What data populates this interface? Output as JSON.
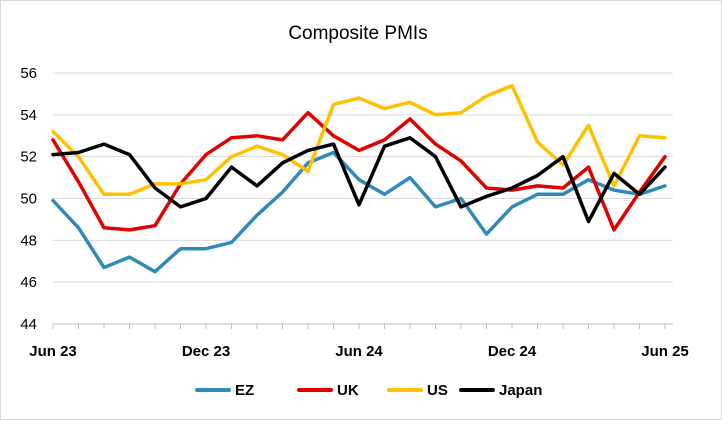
{
  "chart_data": {
    "type": "line",
    "title": "Composite PMIs",
    "xlabel": "",
    "ylabel": "",
    "ylim": [
      44,
      56
    ],
    "yticks": [
      "44",
      "46",
      "48",
      "50",
      "52",
      "54",
      "56"
    ],
    "x": [
      "Jun 23",
      "Jul 23",
      "Aug 23",
      "Sep 23",
      "Oct 23",
      "Nov 23",
      "Dec 23",
      "Jan 24",
      "Feb 24",
      "Mar 24",
      "Apr 24",
      "May 24",
      "Jun 24",
      "Jul 24",
      "Aug 24",
      "Sep 24",
      "Oct 24",
      "Nov 24",
      "Dec 24",
      "Jan 25",
      "Feb 25",
      "Mar 25",
      "Apr 25",
      "May 25",
      "Jun 25"
    ],
    "xticks": [
      {
        "label": "Jun 23",
        "index": 0
      },
      {
        "label": "Dec 23",
        "index": 6
      },
      {
        "label": "Jun 24",
        "index": 12
      },
      {
        "label": "Dec 24",
        "index": 18
      },
      {
        "label": "Jun 25",
        "index": 24
      }
    ],
    "grid": "horizontal",
    "legend_position": "bottom",
    "series": [
      {
        "name": "EZ",
        "color": "#2e8bb8",
        "values": [
          49.9,
          48.6,
          46.7,
          47.2,
          46.5,
          47.6,
          47.6,
          47.9,
          49.2,
          50.3,
          51.7,
          52.2,
          50.9,
          50.2,
          51.0,
          49.6,
          50.0,
          48.3,
          49.6,
          50.2,
          50.2,
          50.9,
          50.4,
          50.2,
          50.6
        ]
      },
      {
        "name": "UK",
        "color": "#e00000",
        "values": [
          52.8,
          50.8,
          48.6,
          48.5,
          48.7,
          50.7,
          52.1,
          52.9,
          53.0,
          52.8,
          54.1,
          53.0,
          52.3,
          52.8,
          53.8,
          52.6,
          51.8,
          50.5,
          50.4,
          50.6,
          50.5,
          51.5,
          48.5,
          50.3,
          52.0
        ]
      },
      {
        "name": "US",
        "color": "#ffc000",
        "values": [
          53.2,
          52.0,
          50.2,
          50.2,
          50.7,
          50.7,
          50.9,
          52.0,
          52.5,
          52.1,
          51.3,
          54.5,
          54.8,
          54.3,
          54.6,
          54.0,
          54.1,
          54.9,
          55.4,
          52.7,
          51.6,
          53.5,
          50.6,
          53.0,
          52.9
        ]
      },
      {
        "name": "Japan",
        "color": "#000000",
        "values": [
          52.1,
          52.2,
          52.6,
          52.1,
          50.5,
          49.6,
          50.0,
          51.5,
          50.6,
          51.7,
          52.3,
          52.6,
          49.7,
          52.5,
          52.9,
          52.0,
          49.6,
          50.1,
          50.5,
          51.1,
          52.0,
          48.9,
          51.2,
          50.2,
          51.5
        ]
      }
    ]
  }
}
